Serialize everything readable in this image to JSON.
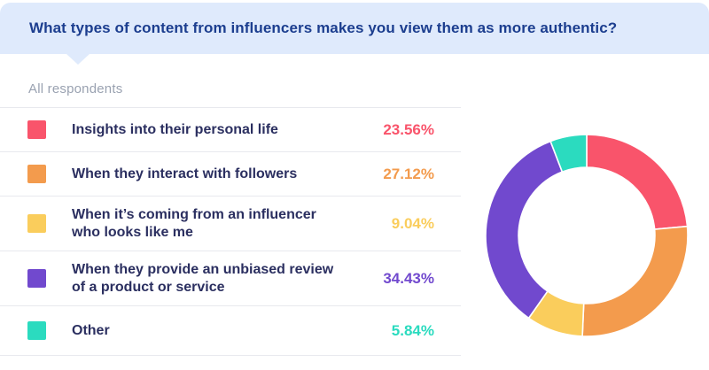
{
  "header": {
    "question": "What types of content from influencers makes you view them as more authentic?"
  },
  "subtitle": "All respondents",
  "legend": {
    "items": [
      {
        "label": "Insights into their personal life",
        "value_text": "23.56%",
        "color": "#f9546b"
      },
      {
        "label": "When they interact with followers",
        "value_text": "27.12%",
        "color": "#f39b4d"
      },
      {
        "label": "When it’s coming from an influencer who looks like me",
        "value_text": "9.04%",
        "color": "#facd5c"
      },
      {
        "label": "When they provide an unbiased review of a product or service",
        "value_text": "34.43%",
        "color": "#7149ce"
      },
      {
        "label": "Other",
        "value_text": "5.84%",
        "color": "#2bdbbf"
      }
    ]
  },
  "chart_data": {
    "type": "pie",
    "subtype": "donut",
    "title": "What types of content from influencers makes you view them as more authentic?",
    "categories": [
      "Insights into their personal life",
      "When they interact with followers",
      "When it’s coming from an influencer who looks like me",
      "When they provide an unbiased review of a product or service",
      "Other"
    ],
    "values": [
      23.56,
      27.12,
      9.04,
      34.43,
      5.84
    ],
    "colors": [
      "#f9546b",
      "#f39b4d",
      "#facd5c",
      "#7149ce",
      "#2bdbbf"
    ],
    "start_angle_deg": 0,
    "direction": "clockwise",
    "inner_radius_ratio": 0.675,
    "gap_stroke_color": "#ffffff",
    "legend_position": "left"
  },
  "colors": {
    "banner_bg": "#dfeafc",
    "banner_text": "#1c3e8f",
    "item_text": "#2b2f60",
    "subtitle_text": "#9aa2b1",
    "divider": "#e8e9ee",
    "background": "#ffffff"
  }
}
